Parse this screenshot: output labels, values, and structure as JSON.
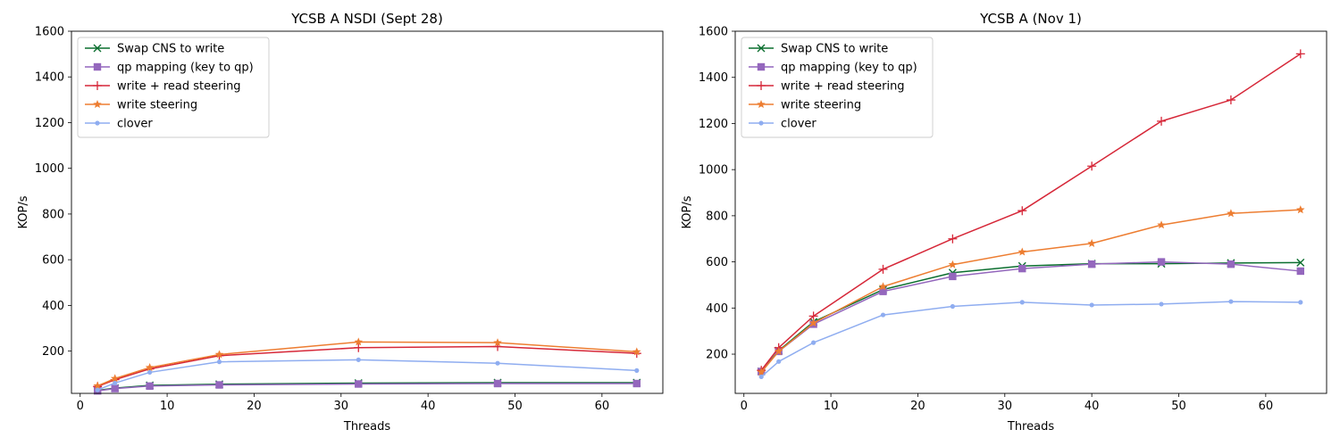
{
  "chart_data": [
    {
      "type": "line",
      "title": "YCSB A NSDI (Sept 28)",
      "xlabel": "Threads",
      "ylabel": "KOP/s",
      "xlim": [
        -1,
        67
      ],
      "ylim": [
        15,
        1600
      ],
      "xticks": [
        0,
        10,
        20,
        30,
        40,
        50,
        60
      ],
      "yticks": [
        200,
        400,
        600,
        800,
        1000,
        1200,
        1400,
        1600
      ],
      "grid": false,
      "legend_position": "top-left",
      "series": [
        {
          "name": "Swap CNS to write",
          "color": "#0a6e2e",
          "marker": "x",
          "x": [
            2,
            4,
            8,
            16,
            32,
            48,
            64
          ],
          "y": [
            28,
            38,
            50,
            55,
            60,
            62,
            62
          ]
        },
        {
          "name": "qp mapping (key to qp)",
          "color": "#9467bd",
          "marker": "square",
          "x": [
            2,
            4,
            8,
            16,
            32,
            48,
            64
          ],
          "y": [
            26,
            36,
            47,
            52,
            56,
            58,
            58
          ]
        },
        {
          "name": "write + read steering",
          "color": "#d62738",
          "marker": "plus",
          "x": [
            2,
            4,
            8,
            16,
            32,
            48,
            64
          ],
          "y": [
            45,
            75,
            122,
            180,
            215,
            220,
            190
          ]
        },
        {
          "name": "write steering",
          "color": "#ed7d31",
          "marker": "star",
          "x": [
            2,
            4,
            8,
            16,
            32,
            48,
            64
          ],
          "y": [
            48,
            80,
            128,
            185,
            240,
            237,
            197
          ]
        },
        {
          "name": "clover",
          "color": "#8fadf0",
          "marker": "dot",
          "x": [
            2,
            4,
            8,
            16,
            32,
            48,
            64
          ],
          "y": [
            30,
            60,
            107,
            153,
            162,
            147,
            115
          ]
        }
      ]
    },
    {
      "type": "line",
      "title": "YCSB A (Nov 1)",
      "xlabel": "Threads",
      "ylabel": "KOP/s",
      "xlim": [
        -1,
        67
      ],
      "ylim": [
        30,
        1600
      ],
      "xticks": [
        0,
        10,
        20,
        30,
        40,
        50,
        60
      ],
      "yticks": [
        200,
        400,
        600,
        800,
        1000,
        1200,
        1400,
        1600
      ],
      "grid": false,
      "legend_position": "top-left",
      "series": [
        {
          "name": "Swap CNS to write",
          "color": "#0a6e2e",
          "marker": "x",
          "x": [
            2,
            4,
            8,
            16,
            24,
            32,
            40,
            48,
            56,
            64
          ],
          "y": [
            125,
            215,
            340,
            480,
            553,
            582,
            592,
            592,
            595,
            597
          ]
        },
        {
          "name": "qp mapping (key to qp)",
          "color": "#9467bd",
          "marker": "square",
          "x": [
            2,
            4,
            8,
            16,
            24,
            32,
            40,
            48,
            56,
            64
          ],
          "y": [
            125,
            212,
            330,
            472,
            537,
            571,
            590,
            600,
            590,
            560
          ]
        },
        {
          "name": "write + read steering",
          "color": "#d62738",
          "marker": "plus",
          "x": [
            2,
            4,
            8,
            16,
            24,
            32,
            40,
            48,
            56,
            64
          ],
          "y": [
            130,
            228,
            365,
            568,
            700,
            822,
            1015,
            1210,
            1302,
            1502
          ]
        },
        {
          "name": "write steering",
          "color": "#ed7d31",
          "marker": "star",
          "x": [
            2,
            4,
            8,
            16,
            24,
            32,
            40,
            48,
            56,
            64
          ],
          "y": [
            122,
            212,
            335,
            493,
            588,
            643,
            680,
            760,
            810,
            826
          ]
        },
        {
          "name": "clover",
          "color": "#8fadf0",
          "marker": "dot",
          "x": [
            2,
            4,
            8,
            16,
            24,
            32,
            40,
            48,
            56,
            64
          ],
          "y": [
            102,
            168,
            250,
            370,
            407,
            425,
            413,
            417,
            428,
            425
          ]
        }
      ]
    }
  ]
}
